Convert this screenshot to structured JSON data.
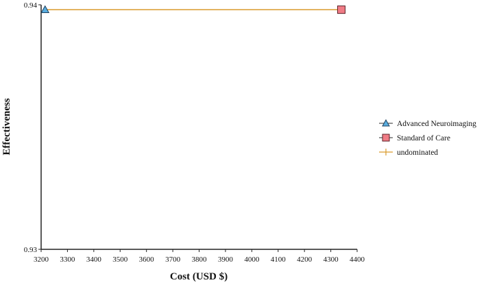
{
  "chart_data": {
    "type": "scatter",
    "title": "",
    "xlabel": "Cost (USD $)",
    "ylabel": "Effectiveness",
    "xlim": [
      3200,
      4400
    ],
    "ylim": [
      0.93,
      0.94
    ],
    "x_ticks": [
      "3200",
      "3300",
      "3400",
      "3500",
      "3600",
      "3700",
      "3800",
      "3900",
      "4000",
      "4100",
      "4200",
      "4300",
      "4400"
    ],
    "y_ticks": [
      "0.93",
      "0.94"
    ],
    "grid": false,
    "legend_position": "right",
    "series": [
      {
        "name": "Advanced Neuroimaging",
        "marker": "triangle",
        "color": "#5aaee0",
        "x": [
          3215
        ],
        "y": [
          0.9398
        ]
      },
      {
        "name": "Standard of Care",
        "marker": "square",
        "color": "#f07c86",
        "x": [
          4340
        ],
        "y": [
          0.9398
        ]
      },
      {
        "name": "undominated",
        "marker": "line",
        "color": "#d99a2b",
        "x": [
          3215,
          4340
        ],
        "y": [
          0.9398,
          0.9398
        ]
      }
    ]
  }
}
